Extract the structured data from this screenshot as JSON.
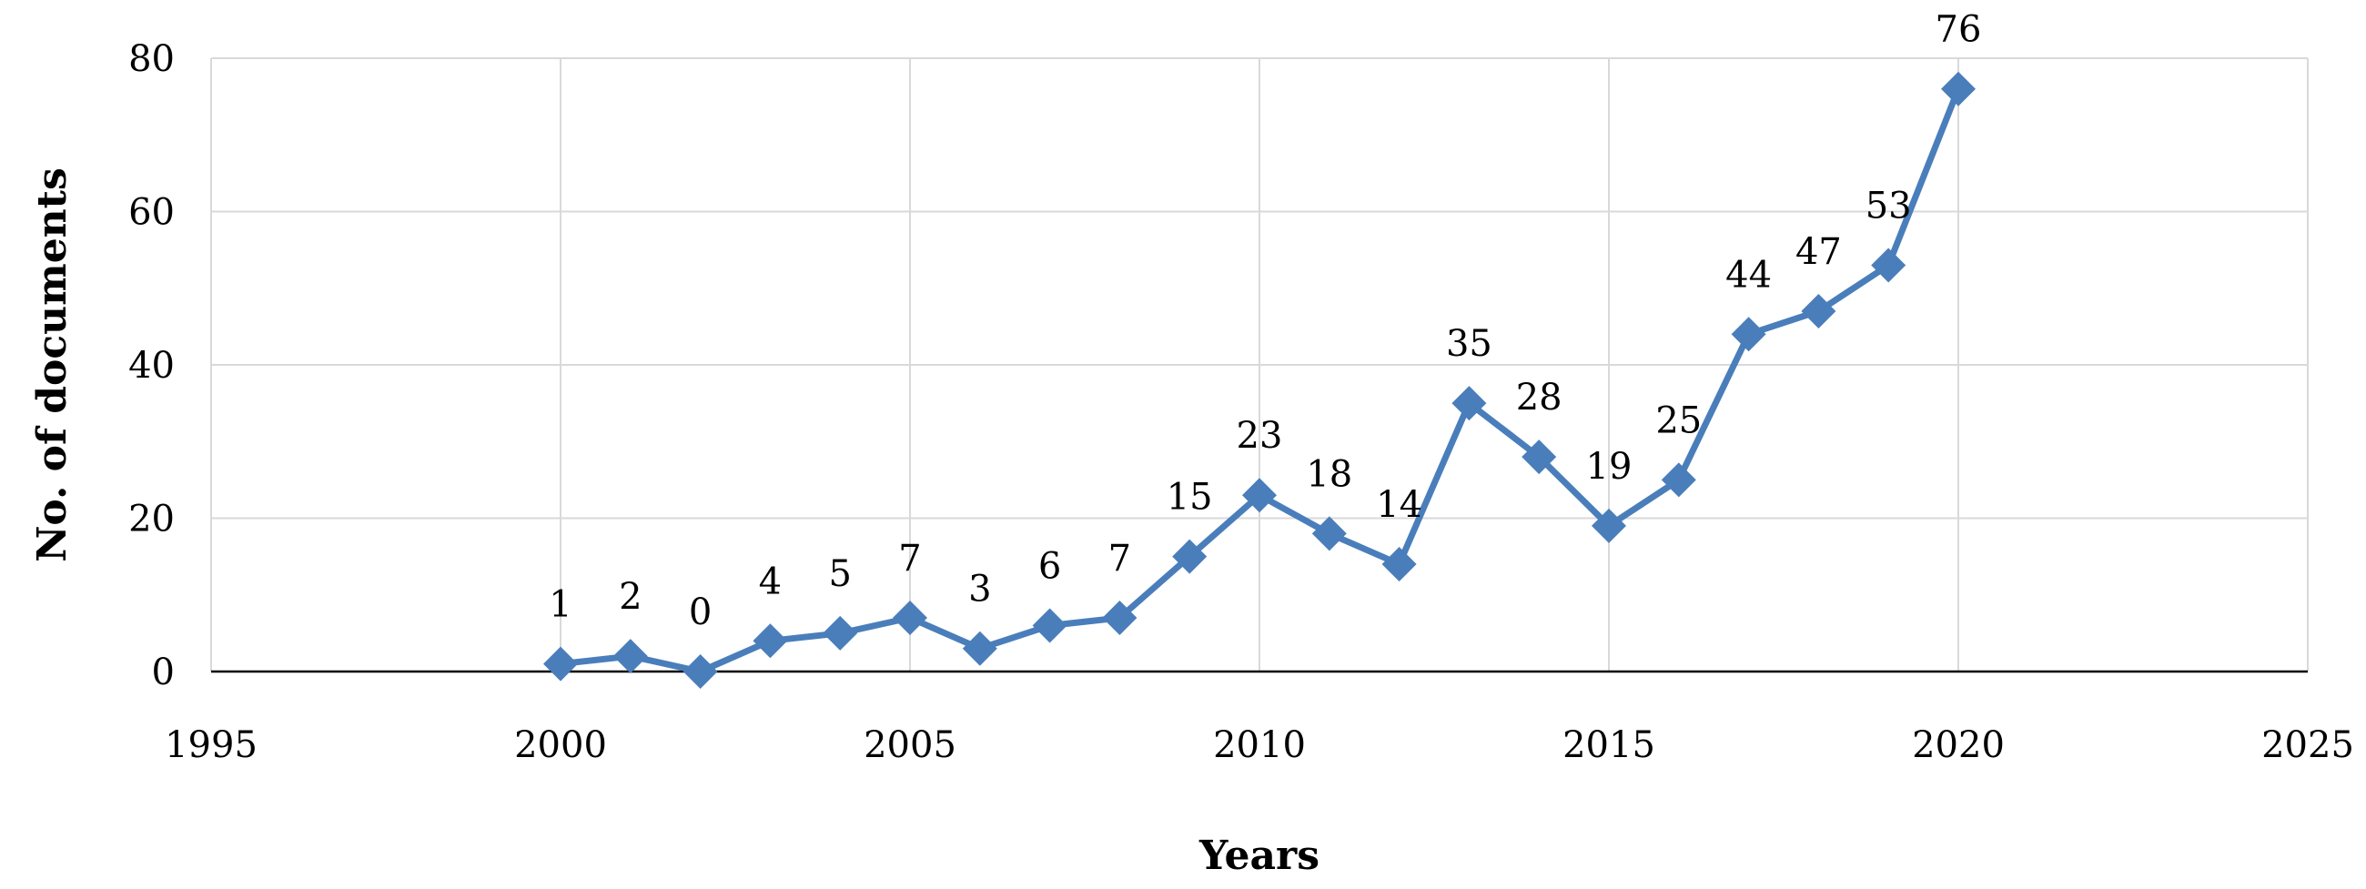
{
  "chart_data": {
    "type": "line",
    "xlabel": "Years",
    "ylabel": "No. of documents",
    "xlim": [
      1995,
      2025
    ],
    "ylim": [
      0,
      80
    ],
    "x_ticks": [
      1995,
      2000,
      2005,
      2010,
      2015,
      2020,
      2025
    ],
    "y_ticks": [
      0,
      20,
      40,
      60,
      80
    ],
    "grid": true,
    "legend": "none",
    "marker": "diamond",
    "series_color": "#4a7ebb",
    "series": [
      {
        "x": [
          2000,
          2001,
          2002,
          2003,
          2004,
          2005,
          2006,
          2007,
          2008,
          2009,
          2010,
          2011,
          2012,
          2013,
          2014,
          2015,
          2016,
          2017,
          2018,
          2019,
          2020
        ],
        "values": [
          1,
          2,
          0,
          4,
          5,
          7,
          3,
          6,
          7,
          15,
          23,
          18,
          14,
          35,
          28,
          19,
          25,
          44,
          47,
          53,
          76
        ],
        "data_labels": [
          "1",
          "2",
          "0",
          "4",
          "5",
          "7",
          "3",
          "6",
          "7",
          "15",
          "23",
          "18",
          "14",
          "35",
          "28",
          "19",
          "25",
          "44",
          "47",
          "53",
          "76"
        ]
      }
    ]
  }
}
